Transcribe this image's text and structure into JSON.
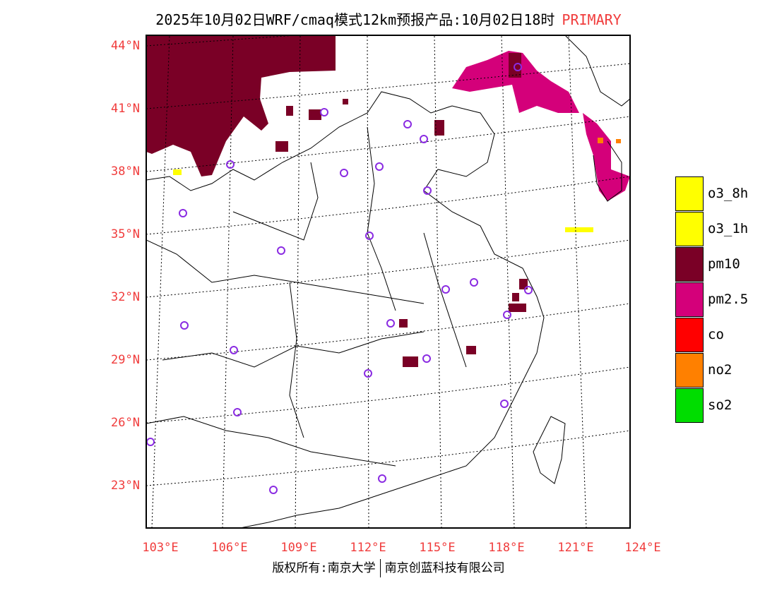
{
  "title": {
    "text": "2025年10月02日WRF/cmaq模式12km预报产品:10月02日18时",
    "pollutant": "PRIMARY"
  },
  "lat_labels": [
    "44°N",
    "41°N",
    "38°N",
    "35°N",
    "32°N",
    "29°N",
    "26°N",
    "23°N"
  ],
  "lon_labels": [
    "103°E",
    "106°E",
    "109°E",
    "112°E",
    "115°E",
    "118°E",
    "121°E",
    "124°E"
  ],
  "copyright": {
    "left": "版权所有:南京大学",
    "right": "南京创蓝科技有限公司"
  },
  "legend": [
    {
      "label": "o3_8h",
      "color": "#ffff00"
    },
    {
      "label": "o3_1h",
      "color": "#ffff00"
    },
    {
      "label": "pm10",
      "color": "#7a0026"
    },
    {
      "label": "pm2.5",
      "color": "#d4007a"
    },
    {
      "label": "co",
      "color": "#ff0000"
    },
    {
      "label": "no2",
      "color": "#ff8000"
    },
    {
      "label": "so2",
      "color": "#00dd00"
    }
  ]
}
